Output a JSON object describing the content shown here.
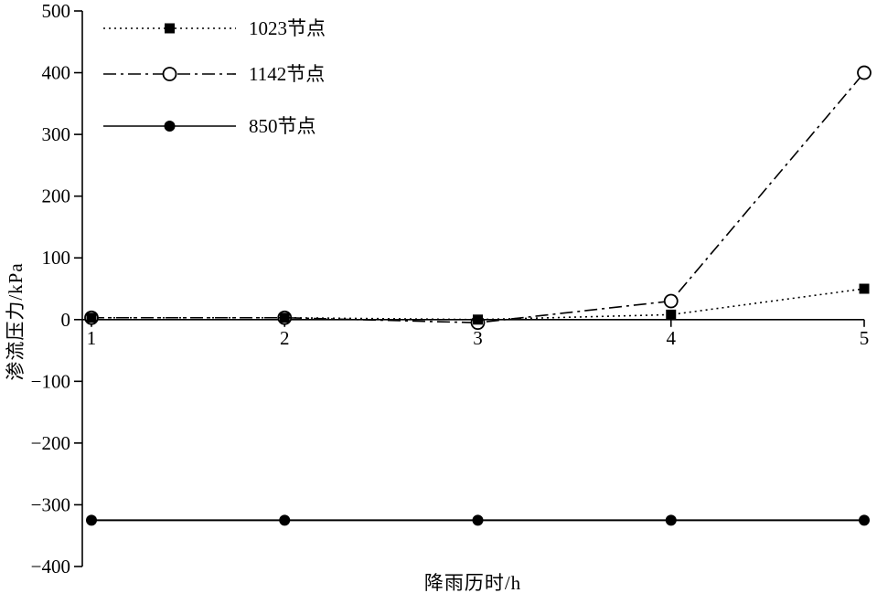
{
  "chart_data": {
    "type": "line",
    "title": "",
    "xlabel": "降雨历时/h",
    "ylabel": "渗流压力/kPa",
    "x": [
      1,
      2,
      3,
      4,
      5
    ],
    "x_ticks": [
      1,
      2,
      3,
      4,
      5
    ],
    "y_ticks": [
      500,
      400,
      300,
      200,
      100,
      0,
      -100,
      -200,
      -300,
      -400
    ],
    "xlim": [
      1,
      5
    ],
    "ylim": [
      -400,
      500
    ],
    "grid": false,
    "legend_position": "top-left",
    "axis_color": "#000000",
    "background_color": "#ffffff",
    "series": [
      {
        "name": "1023节点",
        "marker": "filled-square",
        "line": "dotted",
        "color": "#000000",
        "values": [
          3,
          3,
          0,
          8,
          50
        ]
      },
      {
        "name": "1142节点",
        "marker": "open-circle",
        "line": "dashdot",
        "color": "#000000",
        "values": [
          3,
          3,
          -5,
          30,
          400
        ]
      },
      {
        "name": "850节点",
        "marker": "filled-circle",
        "line": "solid",
        "color": "#000000",
        "values": [
          -325,
          -325,
          -325,
          -325,
          -325
        ]
      }
    ]
  }
}
